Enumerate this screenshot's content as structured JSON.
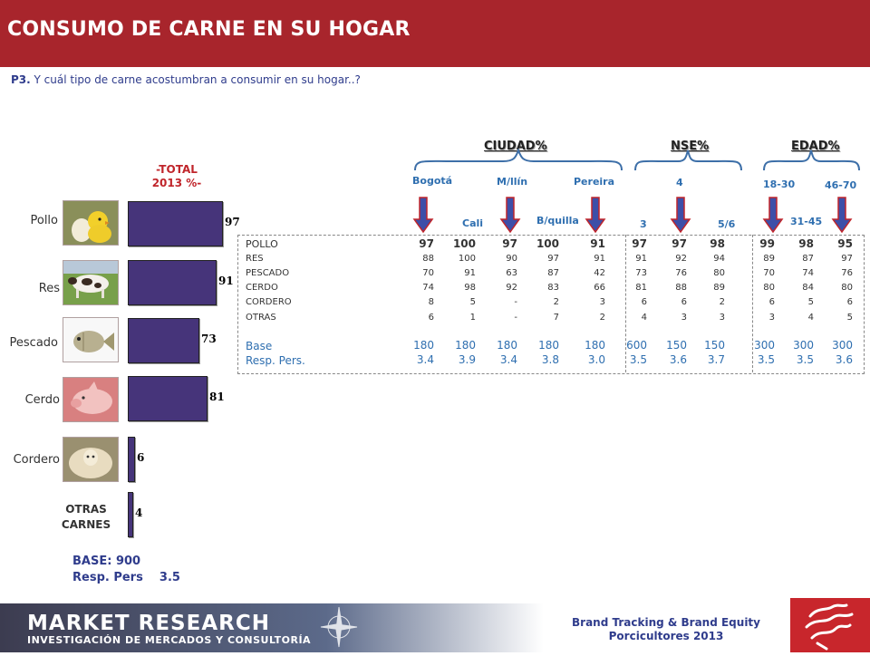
{
  "header": {
    "title": "CONSUMO DE CARNE EN SU HOGAR"
  },
  "question": {
    "prefix": "P3.",
    "text": "Y cuál  tipo de carne acostumbran  a consumir en su hogar..?"
  },
  "total_title": "-TOTAL\n2013 %-",
  "categories": [
    {
      "label": "Pollo",
      "icon": "chick-egg-photo"
    },
    {
      "label": "Res",
      "icon": "cow-photo"
    },
    {
      "label": "Pescado",
      "icon": "fish-photo"
    },
    {
      "label": "Cerdo",
      "icon": "pig-photo"
    },
    {
      "label": "Cordero",
      "icon": "sheep-photo"
    }
  ],
  "otras_label": "OTRAS\nCARNES",
  "base": {
    "line1": "BASE: 900",
    "line2": "Resp. Pers    3.5"
  },
  "chart_data": {
    "type": "bar",
    "orientation": "horizontal",
    "title": "-TOTAL 2013 %-",
    "categories": [
      "Pollo",
      "Res",
      "Pescado",
      "Cerdo",
      "Cordero",
      "OTRAS CARNES"
    ],
    "values": [
      97,
      91,
      73,
      81,
      6,
      4
    ],
    "xlim": [
      0,
      100
    ],
    "grid": false
  },
  "table": {
    "groups": [
      "CIUDAD%",
      "NSE%",
      "EDAD%"
    ],
    "columns_top": [
      "Bogotá",
      "M/llín",
      "Pereira",
      "4",
      "18-30",
      "46-70"
    ],
    "columns_bottom": [
      "Cali",
      "B/quilla",
      "3",
      "5/6",
      "31-45"
    ],
    "rows": [
      {
        "label": "POLLO",
        "values": [
          "97",
          "100",
          "97",
          "100",
          "91",
          "97",
          "97",
          "98",
          "99",
          "98",
          "95"
        ]
      },
      {
        "label": "RES",
        "values": [
          "88",
          "100",
          "90",
          "97",
          "91",
          "91",
          "92",
          "94",
          "89",
          "87",
          "97"
        ]
      },
      {
        "label": "PESCADO",
        "values": [
          "70",
          "91",
          "63",
          "87",
          "42",
          "73",
          "76",
          "80",
          "70",
          "74",
          "76"
        ]
      },
      {
        "label": "CERDO",
        "values": [
          "74",
          "98",
          "92",
          "83",
          "66",
          "81",
          "88",
          "89",
          "80",
          "84",
          "80"
        ]
      },
      {
        "label": "CORDERO",
        "values": [
          "8",
          "5",
          "-",
          "2",
          "3",
          "6",
          "6",
          "2",
          "6",
          "5",
          "6"
        ]
      },
      {
        "label": "OTRAS",
        "values": [
          "6",
          "1",
          "-",
          "7",
          "2",
          "4",
          "3",
          "3",
          "3",
          "4",
          "5"
        ]
      },
      {
        "label": "Base",
        "values": [
          "180",
          "180",
          "180",
          "180",
          "180",
          "600",
          "150",
          "150",
          "300",
          "300",
          "300"
        ]
      },
      {
        "label": "Resp. Pers.",
        "values": [
          "3.4",
          "3.9",
          "3.4",
          "3.8",
          "3.0",
          "3.5",
          "3.6",
          "3.7",
          "3.5",
          "3.5",
          "3.6"
        ]
      }
    ]
  },
  "footer": {
    "brand_title": "MARKET RESEARCH",
    "brand_sub": "INVESTIGACIÓN DE MERCADOS Y CONSULTORÍA",
    "study_line1": "Brand Tracking & Brand Equity",
    "study_line2": "Porcicultores 2013"
  },
  "colors": {
    "header": "#a8252c",
    "bar": "#46347a",
    "accent_blue": "#2f3c8c",
    "table_blue": "#2f6fb0",
    "arrow": "#3d4fa8"
  }
}
